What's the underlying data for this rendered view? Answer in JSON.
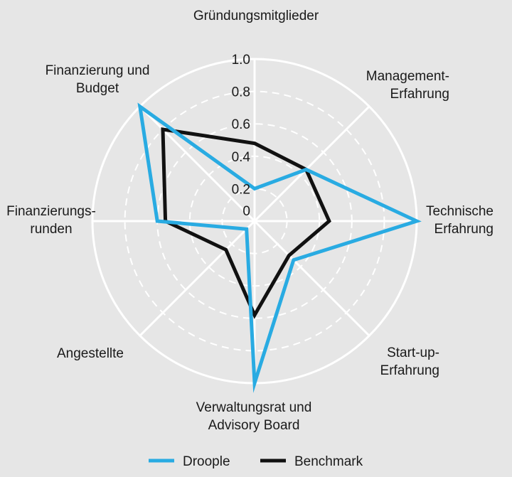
{
  "chart_data": {
    "type": "radar",
    "title": "",
    "axes": [
      [
        "Gründungsmitglieder"
      ],
      [
        "Management-",
        "Erfahrung"
      ],
      [
        "Technische",
        "Erfahrung"
      ],
      [
        "Start-up-",
        "Erfahrung"
      ],
      [
        "Verwaltungsrat und",
        "Advisory Board"
      ],
      [
        "Angestellte"
      ],
      [
        "Finanzierungs-",
        "runden"
      ],
      [
        "Finanzierung und",
        "Budget"
      ]
    ],
    "rlim": [
      0,
      1.0
    ],
    "ticks": [
      "0",
      "0.2",
      "0.4",
      "0.6",
      "0.8",
      "1.0"
    ],
    "tick_values": [
      0,
      0.2,
      0.4,
      0.6,
      0.8,
      1.0
    ],
    "series": [
      {
        "name": "Droople",
        "color": "#29abe2",
        "values": [
          0.2,
          0.45,
          1.0,
          0.34,
          1.0,
          0.07,
          0.6,
          1.0
        ]
      },
      {
        "name": "Benchmark",
        "color": "#111111",
        "values": [
          0.48,
          0.45,
          0.46,
          0.3,
          0.58,
          0.25,
          0.55,
          0.8
        ]
      }
    ]
  },
  "legend": {
    "items": [
      {
        "label": "Droople",
        "color": "#29abe2"
      },
      {
        "label": "Benchmark",
        "color": "#111111"
      }
    ]
  }
}
